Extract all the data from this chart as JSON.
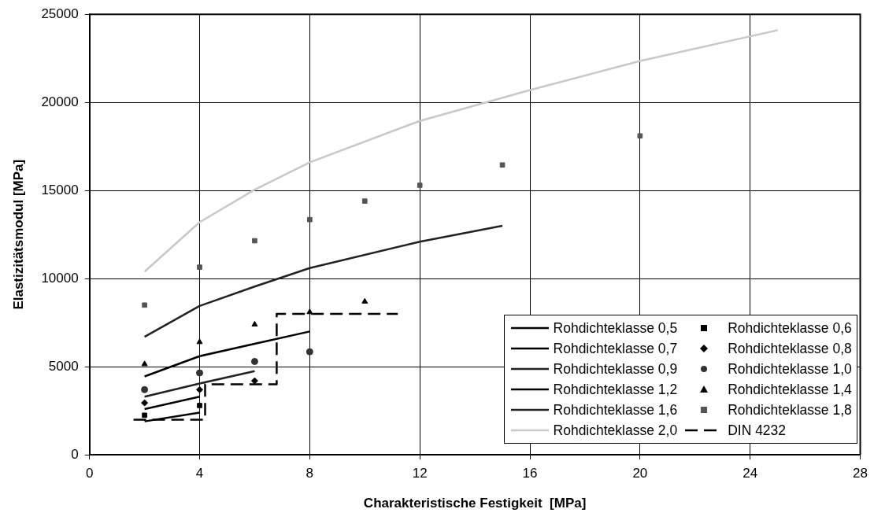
{
  "chart_data": {
    "type": "line",
    "xlabel": "Charakteristische Festigkeit  [MPa]",
    "ylabel": "Elastizitätsmodul [MPa]",
    "xlim": [
      0,
      28
    ],
    "xticks": [
      0,
      4,
      8,
      12,
      16,
      20,
      24,
      28
    ],
    "ylim": [
      0,
      25000
    ],
    "yticks": [
      0,
      5000,
      10000,
      15000,
      20000,
      25000
    ],
    "grid": true,
    "legend": "bottom right",
    "series": [
      {
        "name": "Rohdichteklasse 0,5",
        "type": "line",
        "marker": "none",
        "color": "#000000",
        "x": [
          2,
          4
        ],
        "values": [
          1900,
          2400
        ]
      },
      {
        "name": "Rohdichteklasse 0,6",
        "type": "scatter",
        "marker": "square",
        "color": "#000000",
        "x": [
          2,
          4
        ],
        "values": [
          2250,
          2800
        ]
      },
      {
        "name": "Rohdichteklasse 0,7",
        "type": "line",
        "marker": "none",
        "color": "#000000",
        "x": [
          2,
          4
        ],
        "values": [
          2600,
          3300
        ]
      },
      {
        "name": "Rohdichteklasse 0,8",
        "type": "scatter",
        "marker": "diamond",
        "color": "#000000",
        "x": [
          2,
          4,
          6
        ],
        "values": [
          2950,
          3700,
          4200
        ]
      },
      {
        "name": "Rohdichteklasse 0,9",
        "type": "line",
        "marker": "none",
        "color": "#222222",
        "x": [
          2,
          4,
          6
        ],
        "values": [
          3300,
          4050,
          4750
        ]
      },
      {
        "name": "Rohdichteklasse 1,0",
        "type": "scatter",
        "marker": "circle",
        "color": "#333333",
        "x": [
          2,
          4,
          6,
          8
        ],
        "values": [
          3700,
          4650,
          5300,
          5850
        ]
      },
      {
        "name": "Rohdichteklasse 1,2",
        "type": "line",
        "marker": "none",
        "color": "#000000",
        "x": [
          2,
          4,
          6,
          8
        ],
        "values": [
          4450,
          5600,
          6300,
          7000
        ]
      },
      {
        "name": "Rohdichteklasse 1,4",
        "type": "scatter",
        "marker": "triangle",
        "color": "#000000",
        "x": [
          2,
          4,
          6,
          8,
          10
        ],
        "values": [
          5150,
          6400,
          7400,
          8100,
          8700
        ]
      },
      {
        "name": "Rohdichteklasse 1,6",
        "type": "line",
        "marker": "none",
        "color": "#222222",
        "x": [
          2,
          4,
          6,
          8,
          12,
          15
        ],
        "values": [
          6700,
          8450,
          9550,
          10600,
          12100,
          13000
        ]
      },
      {
        "name": "Rohdichteklasse 1,8",
        "type": "scatter",
        "marker": "square",
        "color": "#555555",
        "x": [
          2,
          4,
          6,
          8,
          10,
          12,
          15,
          20
        ],
        "values": [
          8500,
          10650,
          12150,
          13350,
          14400,
          15300,
          16450,
          18100
        ]
      },
      {
        "name": "Rohdichteklasse 2,0",
        "type": "line",
        "marker": "none",
        "color": "#c8c8c8",
        "x": [
          2,
          4,
          6,
          8,
          12,
          16,
          20,
          25
        ],
        "values": [
          10400,
          13200,
          15050,
          16600,
          18950,
          20700,
          22350,
          24100
        ]
      },
      {
        "name": "DIN 4232",
        "type": "line",
        "marker": "none",
        "line_style": "dashed",
        "color": "#000000",
        "x": [
          1.6,
          4.2,
          4.2,
          6.8,
          6.8,
          11.2
        ],
        "values": [
          2000,
          2000,
          4000,
          4000,
          8000,
          8000
        ]
      }
    ]
  }
}
